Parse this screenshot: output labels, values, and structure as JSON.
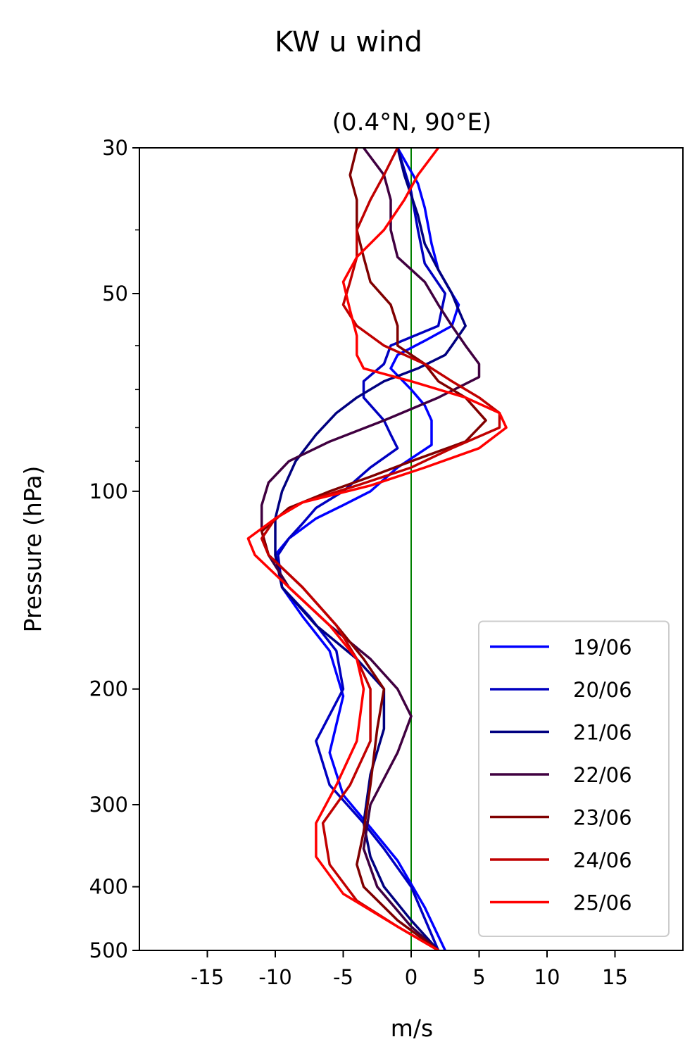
{
  "chart_data": {
    "type": "line",
    "title": "KW u wind",
    "subtitle": "(0.4°N, 90°E)",
    "xlabel": "m/s",
    "ylabel": "Pressure (hPa)",
    "xlim": [
      -20,
      20
    ],
    "ylim": [
      500,
      30
    ],
    "yscale": "log",
    "xticks": [
      -15,
      -10,
      -5,
      0,
      5,
      10,
      15
    ],
    "xtick_labels": [
      "-15",
      "-10",
      "-5",
      "0",
      "5",
      "10",
      "15"
    ],
    "yticks": [
      30,
      50,
      100,
      200,
      300,
      400,
      500
    ],
    "ytick_labels": [
      "30",
      "50",
      "100",
      "200",
      "300",
      "400",
      "500"
    ],
    "y_minor_ticks": [
      40,
      60,
      70,
      80,
      90
    ],
    "reference_line": {
      "x": 0,
      "color": "#008000"
    },
    "legend_position": "lower right",
    "grid": false,
    "series": [
      {
        "name": "19/06",
        "color": "#0000ff",
        "points": [
          [
            -1,
            30
          ],
          [
            0.5,
            34
          ],
          [
            1,
            37
          ],
          [
            1.5,
            42
          ],
          [
            2,
            46
          ],
          [
            3,
            50
          ],
          [
            3.5,
            52
          ],
          [
            3,
            56
          ],
          [
            1,
            59
          ],
          [
            -1,
            62
          ],
          [
            -1.5,
            65
          ],
          [
            0,
            70
          ],
          [
            1,
            74
          ],
          [
            1.5,
            78
          ],
          [
            1.5,
            85
          ],
          [
            -1,
            92
          ],
          [
            -3,
            100
          ],
          [
            -5,
            105
          ],
          [
            -7,
            110
          ],
          [
            -9,
            118
          ],
          [
            -10,
            125
          ],
          [
            -9.5,
            140
          ],
          [
            -8,
            155
          ],
          [
            -6,
            175
          ],
          [
            -5,
            205
          ],
          [
            -6,
            250
          ],
          [
            -5,
            290
          ],
          [
            -3,
            325
          ],
          [
            -1,
            365
          ],
          [
            1,
            430
          ],
          [
            2.5,
            500
          ]
        ]
      },
      {
        "name": "20/06",
        "color": "#0000c0",
        "points": [
          [
            -1,
            30
          ],
          [
            0,
            35
          ],
          [
            0.5,
            40
          ],
          [
            1,
            45
          ],
          [
            2.5,
            50
          ],
          [
            2,
            56
          ],
          [
            -1.5,
            60
          ],
          [
            -2,
            64
          ],
          [
            -3.5,
            68
          ],
          [
            -3.5,
            72
          ],
          [
            -2,
            78
          ],
          [
            -1.5,
            82
          ],
          [
            -1,
            86
          ],
          [
            -3,
            92
          ],
          [
            -5,
            100
          ],
          [
            -7,
            106
          ],
          [
            -8,
            112
          ],
          [
            -9,
            118
          ],
          [
            -9.8,
            125
          ],
          [
            -9.5,
            140
          ],
          [
            -7.5,
            155
          ],
          [
            -5.5,
            175
          ],
          [
            -5,
            200
          ],
          [
            -7,
            240
          ],
          [
            -6,
            280
          ],
          [
            -3.5,
            320
          ],
          [
            -2,
            350
          ],
          [
            0,
            400
          ],
          [
            2,
            500
          ]
        ]
      },
      {
        "name": "21/06",
        "color": "#000080",
        "points": [
          [
            -1,
            30
          ],
          [
            -0.5,
            33
          ],
          [
            0.5,
            38
          ],
          [
            1,
            42
          ],
          [
            2,
            46
          ],
          [
            3,
            50
          ],
          [
            3.5,
            53
          ],
          [
            4,
            56
          ],
          [
            3,
            60
          ],
          [
            2.5,
            62
          ],
          [
            0.5,
            65
          ],
          [
            -2,
            68
          ],
          [
            -4,
            72
          ],
          [
            -5.5,
            76
          ],
          [
            -7,
            82
          ],
          [
            -8.5,
            90
          ],
          [
            -9.5,
            100
          ],
          [
            -10,
            110
          ],
          [
            -10,
            125
          ],
          [
            -9.5,
            140
          ],
          [
            -7,
            160
          ],
          [
            -4,
            180
          ],
          [
            -2,
            200
          ],
          [
            -2,
            230
          ],
          [
            -3,
            270
          ],
          [
            -3.5,
            320
          ],
          [
            -3,
            360
          ],
          [
            -2,
            400
          ],
          [
            0,
            450
          ],
          [
            2,
            500
          ]
        ]
      },
      {
        "name": "22/06",
        "color": "#400040",
        "points": [
          [
            -3.5,
            30
          ],
          [
            -2,
            33
          ],
          [
            -1.5,
            36
          ],
          [
            -1.5,
            40
          ],
          [
            -1,
            44
          ],
          [
            1,
            48
          ],
          [
            2,
            52
          ],
          [
            3,
            56
          ],
          [
            4,
            60
          ],
          [
            5,
            64
          ],
          [
            5,
            67
          ],
          [
            2,
            72
          ],
          [
            -2,
            78
          ],
          [
            -6,
            84
          ],
          [
            -9,
            90
          ],
          [
            -10.5,
            97
          ],
          [
            -11,
            105
          ],
          [
            -11,
            115
          ],
          [
            -10.5,
            125
          ],
          [
            -9,
            140
          ],
          [
            -6,
            160
          ],
          [
            -3,
            180
          ],
          [
            -1,
            200
          ],
          [
            0,
            220
          ],
          [
            -1,
            250
          ],
          [
            -3,
            300
          ],
          [
            -3.5,
            350
          ],
          [
            -2.5,
            400
          ],
          [
            0,
            460
          ],
          [
            2,
            500
          ]
        ]
      },
      {
        "name": "23/06",
        "color": "#800000",
        "points": [
          [
            -4,
            30
          ],
          [
            -4.5,
            33
          ],
          [
            -4,
            36
          ],
          [
            -4,
            40
          ],
          [
            -3.5,
            44
          ],
          [
            -3,
            48
          ],
          [
            -1.5,
            52
          ],
          [
            -1,
            56
          ],
          [
            -1,
            60
          ],
          [
            1,
            64
          ],
          [
            2,
            68
          ],
          [
            4,
            72
          ],
          [
            5.5,
            78
          ],
          [
            4,
            84
          ],
          [
            0,
            90
          ],
          [
            -3,
            95
          ],
          [
            -6,
            100
          ],
          [
            -9,
            106
          ],
          [
            -11,
            115
          ],
          [
            -10.5,
            125
          ],
          [
            -8,
            140
          ],
          [
            -5.5,
            160
          ],
          [
            -3.5,
            180
          ],
          [
            -2,
            200
          ],
          [
            -2.5,
            230
          ],
          [
            -3,
            280
          ],
          [
            -3.5,
            330
          ],
          [
            -4,
            370
          ],
          [
            -3.5,
            400
          ],
          [
            -1,
            450
          ],
          [
            2,
            500
          ]
        ]
      },
      {
        "name": "24/06",
        "color": "#c00000",
        "points": [
          [
            -1,
            30
          ],
          [
            -2,
            33
          ],
          [
            -3,
            36
          ],
          [
            -4,
            40
          ],
          [
            -4,
            44
          ],
          [
            -4.5,
            48
          ],
          [
            -5,
            52
          ],
          [
            -4,
            56
          ],
          [
            -2,
            60
          ],
          [
            1,
            64
          ],
          [
            3,
            68
          ],
          [
            5,
            72
          ],
          [
            6.5,
            76
          ],
          [
            6.5,
            80
          ],
          [
            3,
            86
          ],
          [
            0,
            92
          ],
          [
            -4,
            98
          ],
          [
            -8,
            104
          ],
          [
            -10,
            110
          ],
          [
            -11,
            118
          ],
          [
            -10.5,
            125
          ],
          [
            -8,
            140
          ],
          [
            -5.5,
            160
          ],
          [
            -4,
            180
          ],
          [
            -3,
            200
          ],
          [
            -3,
            240
          ],
          [
            -4.5,
            280
          ],
          [
            -6.5,
            320
          ],
          [
            -6,
            370
          ],
          [
            -4,
            420
          ],
          [
            -1,
            460
          ],
          [
            2,
            500
          ]
        ]
      },
      {
        "name": "25/06",
        "color": "#ff0000",
        "points": [
          [
            2,
            30
          ],
          [
            0.5,
            33
          ],
          [
            -0.5,
            36
          ],
          [
            -2,
            40
          ],
          [
            -4,
            44
          ],
          [
            -5,
            48
          ],
          [
            -4.5,
            53
          ],
          [
            -4,
            58
          ],
          [
            -4,
            62
          ],
          [
            -3.5,
            65
          ],
          [
            0,
            68
          ],
          [
            4,
            72
          ],
          [
            6.5,
            76
          ],
          [
            7,
            80
          ],
          [
            5,
            86
          ],
          [
            1,
            92
          ],
          [
            -3,
            98
          ],
          [
            -8,
            104
          ],
          [
            -10,
            110
          ],
          [
            -12,
            118
          ],
          [
            -11.5,
            125
          ],
          [
            -9,
            140
          ],
          [
            -6,
            160
          ],
          [
            -4,
            180
          ],
          [
            -3.5,
            200
          ],
          [
            -4,
            240
          ],
          [
            -5.5,
            280
          ],
          [
            -7,
            320
          ],
          [
            -7,
            360
          ],
          [
            -5,
            410
          ],
          [
            -1,
            460
          ],
          [
            2,
            500
          ]
        ]
      }
    ]
  }
}
